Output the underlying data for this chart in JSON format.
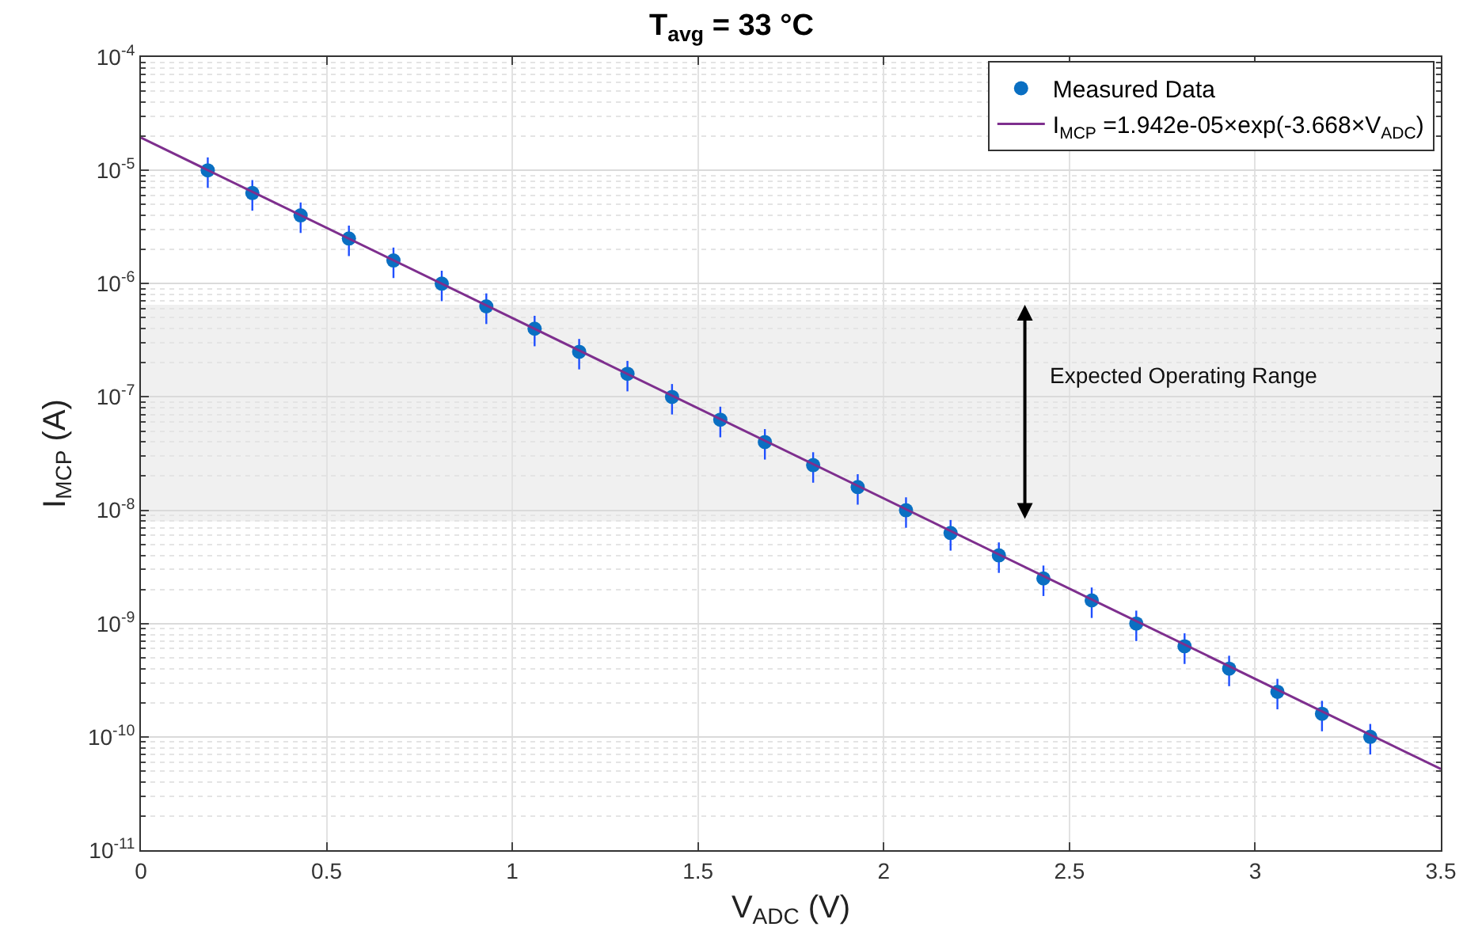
{
  "chart_data": {
    "type": "scatter",
    "title": "T$_{avg}$ = 33 °C",
    "xlabel": "V$_{ADC}$ (V)",
    "ylabel": "I$_{MCP}$ (A)",
    "log": "y",
    "grid": true,
    "legend": "top right",
    "marker": "circle",
    "xlim": [
      0,
      3.5
    ],
    "xticks": [
      0,
      0.5,
      1,
      1.5,
      2,
      2.5,
      3,
      3.5
    ],
    "ylim": [
      1e-11,
      0.0001
    ],
    "yticks": [
      {
        "value": 1e-11,
        "label": "10$^{-11}$"
      },
      {
        "value": 1e-10,
        "label": "10$^{-10}$"
      },
      {
        "value": 1e-09,
        "label": "10$^{-9}$"
      },
      {
        "value": 1e-08,
        "label": "10$^{-8}$"
      },
      {
        "value": 1e-07,
        "label": "10$^{-7}$"
      },
      {
        "value": 1e-06,
        "label": "10$^{-6}$"
      },
      {
        "value": 1e-05,
        "label": "10$^{-5}$"
      },
      {
        "value": 0.0001,
        "label": "10$^{-4}$"
      }
    ],
    "series": [
      {
        "name": "Measured Data",
        "color": "#0a6fc2",
        "x": [
          0.18,
          0.3,
          0.43,
          0.56,
          0.68,
          0.81,
          0.93,
          1.06,
          1.18,
          1.31,
          1.43,
          1.56,
          1.68,
          1.81,
          1.93,
          2.06,
          2.18,
          2.31,
          2.43,
          2.56,
          2.68,
          2.81,
          2.93,
          3.06,
          3.18,
          3.31
        ],
        "values": [
          1e-05,
          6.3e-06,
          4e-06,
          2.5e-06,
          1.6e-06,
          1e-06,
          6.3e-07,
          4e-07,
          2.5e-07,
          1.6e-07,
          1e-07,
          6.3e-08,
          4e-08,
          2.5e-08,
          1.6e-08,
          1e-08,
          6.3e-09,
          4e-09,
          2.5e-09,
          1.6e-09,
          1e-09,
          6.3e-10,
          4e-10,
          2.5e-10,
          1.6e-10,
          1e-10
        ],
        "errors": [
          3e-06,
          1.9e-06,
          1.2e-06,
          7.5e-07,
          4.8e-07,
          3e-07,
          1.9e-07,
          1.2e-07,
          7.5e-08,
          4.8e-08,
          3e-08,
          1.9e-08,
          1.2e-08,
          7.5e-09,
          4.8e-09,
          3e-09,
          1.9e-09,
          1.2e-09,
          7.5e-10,
          4.8e-10,
          3e-10,
          1.9e-10,
          1.2e-10,
          7.5e-11,
          4.8e-11,
          3e-11
        ]
      },
      {
        "name": "I$_{MCP}$ =1.942e-05×exp(-3.668×V$_{ADC}$)",
        "type": "line",
        "color": "#7e2f8e",
        "marker": "none",
        "line_style": "solid",
        "x": [
          0,
          3.5
        ],
        "values": [
          1.942e-05,
          5.2e-11
        ]
      }
    ],
    "bands": [
      {
        "axis": "y",
        "from": 8e-09,
        "to": 6.5e-07,
        "color": "#f0f0f0",
        "label": "Expected Operating Range"
      }
    ]
  }
}
